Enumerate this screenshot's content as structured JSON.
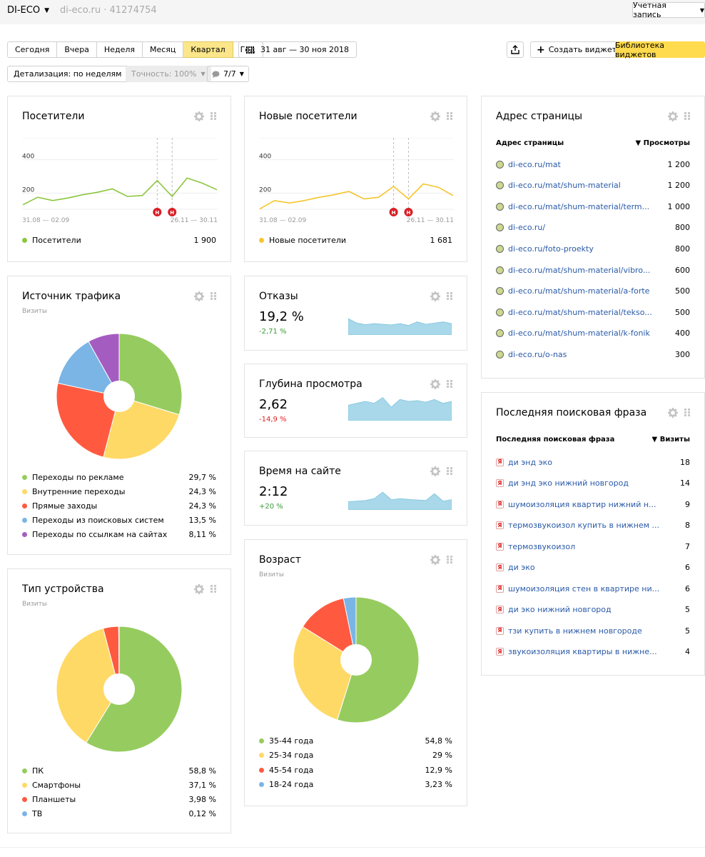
{
  "header": {
    "site_name": "DI-ECO",
    "site_meta": "di-eco.ru · 41274754",
    "account_label": "Учетная запись"
  },
  "toolbar": {
    "periods": [
      "Сегодня",
      "Вчера",
      "Неделя",
      "Месяц",
      "Квартал",
      "Год"
    ],
    "active_period": "Квартал",
    "date_range": "31 авг — 30 ноя 2018",
    "create_widget": "Создать виджет",
    "widget_library": "Библиотека виджетов",
    "detail": "Детализация: по неделям",
    "accuracy": "Точность: 100%",
    "notes": "7/7"
  },
  "visitors": {
    "title": "Посетители",
    "y_ticks": [
      "400",
      "200"
    ],
    "x_start": "31.08 — 02.09",
    "x_end": "26.11 — 30.11",
    "legend": "Посетители",
    "total": "1 900",
    "color": "#8cc63f",
    "chart_data": {
      "type": "line",
      "ylim": [
        0,
        480
      ],
      "values": [
        130,
        175,
        155,
        170,
        190,
        205,
        225,
        180,
        185,
        275,
        180,
        290,
        260,
        220
      ]
    }
  },
  "new_visitors": {
    "title": "Новые посетители",
    "y_ticks": [
      "400",
      "200"
    ],
    "x_start": "31.08 — 02.09",
    "x_end": "26.11 — 30.11",
    "legend": "Новые посетители",
    "total": "1 681",
    "color": "#f7c52e",
    "chart_data": {
      "type": "line",
      "ylim": [
        0,
        480
      ],
      "values": [
        105,
        155,
        140,
        155,
        175,
        190,
        210,
        165,
        175,
        240,
        165,
        255,
        235,
        185
      ]
    }
  },
  "annotations": {
    "marker": "H"
  },
  "traffic": {
    "title": "Источник трафика",
    "subtitle": "Визиты",
    "chart_data": {
      "type": "pie",
      "items": [
        {
          "label": "Переходы по рекламе",
          "value": 29.7,
          "text": "29,7 %",
          "color": "#96cc5f"
        },
        {
          "label": "Внутренние переходы",
          "value": 24.3,
          "text": "24,3 %",
          "color": "#ffd966"
        },
        {
          "label": "Прямые заходы",
          "value": 24.3,
          "text": "24,3 %",
          "color": "#ff5a40"
        },
        {
          "label": "Переходы из поисковых систем",
          "value": 13.5,
          "text": "13,5 %",
          "color": "#7ab5e6"
        },
        {
          "label": "Переходы по ссылкам на сайтах",
          "value": 8.11,
          "text": "8,11 %",
          "color": "#a55cc0"
        }
      ]
    }
  },
  "bounces": {
    "title": "Отказы",
    "value": "19,2 %",
    "delta": "-2,71 %",
    "delta_color": "#3b9b3b",
    "spark": [
      55,
      40,
      35,
      38,
      36,
      34,
      38,
      32,
      44,
      36,
      40,
      44,
      38
    ]
  },
  "depth": {
    "title": "Глубина просмотра",
    "value": "2,62",
    "delta": "-14,9 %",
    "delta_color": "#e02020",
    "spark": [
      40,
      45,
      50,
      45,
      60,
      35,
      55,
      50,
      52,
      48,
      55,
      45,
      50
    ]
  },
  "time": {
    "title": "Время на сайте",
    "value": "2:12",
    "delta": "+20 %",
    "delta_color": "#3b9b3b",
    "spark": [
      28,
      30,
      32,
      38,
      60,
      35,
      38,
      36,
      34,
      32,
      55,
      30,
      35
    ]
  },
  "age": {
    "title": "Возраст",
    "subtitle": "Визиты",
    "chart_data": {
      "type": "pie",
      "items": [
        {
          "label": "35-44 года",
          "value": 54.8,
          "text": "54,8 %",
          "color": "#96cc5f"
        },
        {
          "label": "25-34 года",
          "value": 29,
          "text": "29 %",
          "color": "#ffd966"
        },
        {
          "label": "45-54 года",
          "value": 12.9,
          "text": "12,9 %",
          "color": "#ff5a40"
        },
        {
          "label": "18-24 года",
          "value": 3.23,
          "text": "3,23 %",
          "color": "#7ab5e6"
        }
      ]
    }
  },
  "device": {
    "title": "Тип устройства",
    "subtitle": "Визиты",
    "chart_data": {
      "type": "pie",
      "items": [
        {
          "label": "ПК",
          "value": 58.8,
          "text": "58,8 %",
          "color": "#96cc5f"
        },
        {
          "label": "Смартфоны",
          "value": 37.1,
          "text": "37,1 %",
          "color": "#ffd966"
        },
        {
          "label": "Планшеты",
          "value": 3.98,
          "text": "3,98 %",
          "color": "#ff5a40"
        },
        {
          "label": "ТВ",
          "value": 0.12,
          "text": "0,12 %",
          "color": "#7ab5e6"
        }
      ]
    }
  },
  "pages": {
    "title": "Адрес страницы",
    "col1": "Адрес страницы",
    "col2": "▼ Просмотры",
    "rows": [
      {
        "url": "di-eco.ru/mat",
        "views": "1 200"
      },
      {
        "url": "di-eco.ru/mat/shum-material",
        "views": "1 200"
      },
      {
        "url": "di-eco.ru/mat/shum-material/term...",
        "views": "1 000"
      },
      {
        "url": "di-eco.ru/",
        "views": "800"
      },
      {
        "url": "di-eco.ru/foto-proekty",
        "views": "800"
      },
      {
        "url": "di-eco.ru/mat/shum-material/vibro...",
        "views": "600"
      },
      {
        "url": "di-eco.ru/mat/shum-material/a-forte",
        "views": "500"
      },
      {
        "url": "di-eco.ru/mat/shum-material/tekso...",
        "views": "500"
      },
      {
        "url": "di-eco.ru/mat/shum-material/k-fonik",
        "views": "400"
      },
      {
        "url": "di-eco.ru/o-nas",
        "views": "300"
      }
    ]
  },
  "phrases": {
    "title": "Последняя поисковая фраза",
    "col1": "Последняя поисковая фраза",
    "col2": "▼ Визиты",
    "icon_letter": "Я",
    "rows": [
      {
        "phrase": "ди энд эко",
        "visits": "18"
      },
      {
        "phrase": "ди энд эко нижний новгород",
        "visits": "14"
      },
      {
        "phrase": "шумоизоляция квартир нижний н...",
        "visits": "9"
      },
      {
        "phrase": "термозвукоизол купить в нижнем ...",
        "visits": "8"
      },
      {
        "phrase": "термозвукоизол",
        "visits": "7"
      },
      {
        "phrase": "ди эко",
        "visits": "6"
      },
      {
        "phrase": "шумоизоляция стен в квартире ни...",
        "visits": "6"
      },
      {
        "phrase": "ди эко нижний новгород",
        "visits": "5"
      },
      {
        "phrase": "тзи купить в нижнем новгороде",
        "visits": "5"
      },
      {
        "phrase": "звукоизоляция квартиры в нижне...",
        "visits": "4"
      }
    ]
  }
}
